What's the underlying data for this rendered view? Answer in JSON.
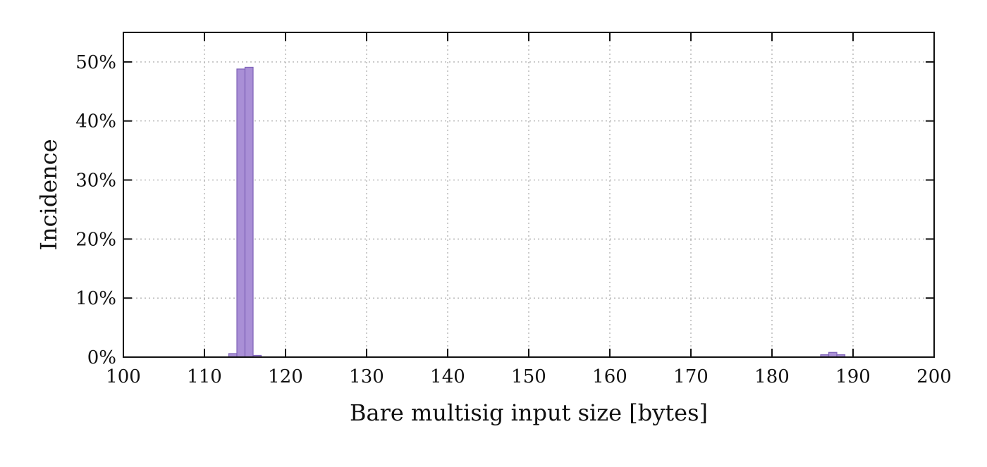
{
  "chart_data": {
    "type": "bar",
    "title": "",
    "xlabel": "Bare multisig input size [bytes]",
    "ylabel": "Incidence",
    "xlim": [
      100,
      200
    ],
    "ylim": [
      0,
      55
    ],
    "x_ticks": [
      100,
      110,
      120,
      130,
      140,
      150,
      160,
      170,
      180,
      190,
      200
    ],
    "x_tick_labels": [
      "100",
      "110",
      "120",
      "130",
      "140",
      "150",
      "160",
      "170",
      "180",
      "190",
      "200"
    ],
    "y_ticks": [
      0,
      10,
      20,
      30,
      40,
      50
    ],
    "y_tick_labels": [
      "0%",
      "10%",
      "20%",
      "30%",
      "40%",
      "50%"
    ],
    "grid": true,
    "bin_width": 1,
    "bar_color": "#a98fd6",
    "bar_edge_color": "#7e62b8",
    "series": [
      {
        "bins": [
          {
            "x": 113.5,
            "y": 0.6
          },
          {
            "x": 114.5,
            "y": 48.8
          },
          {
            "x": 115.5,
            "y": 49.1
          },
          {
            "x": 116.5,
            "y": 0.3
          },
          {
            "x": 186.5,
            "y": 0.4
          },
          {
            "x": 187.5,
            "y": 0.8
          },
          {
            "x": 188.5,
            "y": 0.4
          }
        ]
      }
    ]
  }
}
